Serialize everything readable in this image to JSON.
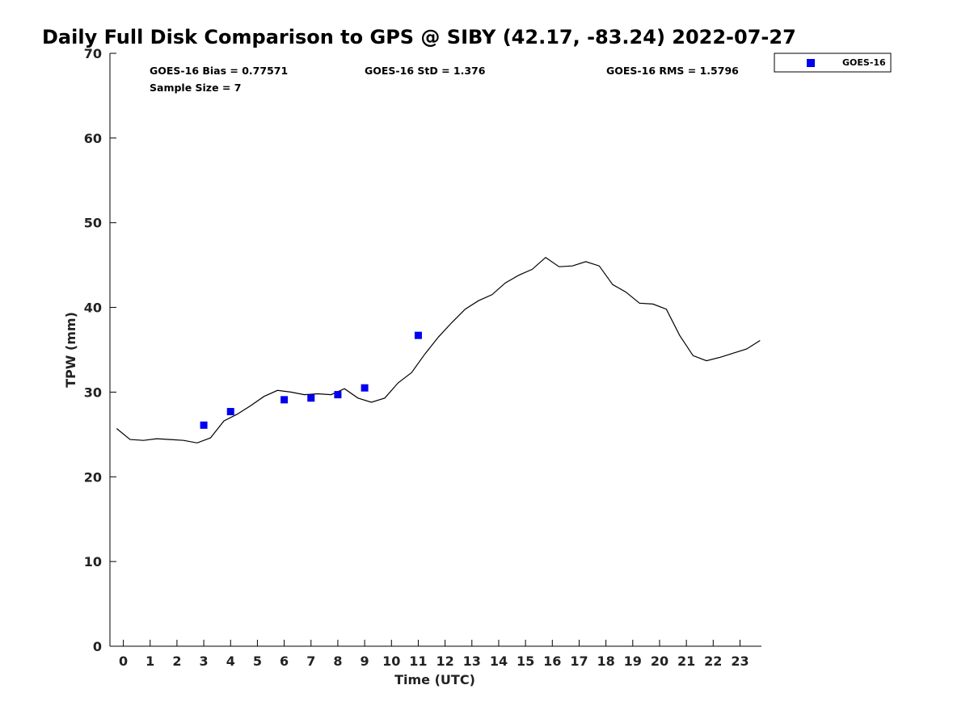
{
  "chart_data": {
    "type": "scatter",
    "title": "Daily Full Disk Comparison to GPS @ SIBY (42.17, -83.24) 2022-07-27",
    "xlabel": "Time (UTC)",
    "ylabel": "TPW (mm)",
    "xlim": [
      -0.5,
      23.8
    ],
    "ylim": [
      0,
      70
    ],
    "x_ticks": [
      "0",
      "1",
      "2",
      "3",
      "4",
      "5",
      "6",
      "7",
      "8",
      "9",
      "10",
      "11",
      "12",
      "13",
      "14",
      "15",
      "16",
      "17",
      "18",
      "19",
      "20",
      "21",
      "22",
      "23"
    ],
    "y_ticks": [
      "0",
      "10",
      "20",
      "30",
      "40",
      "50",
      "60",
      "70"
    ],
    "grid": false,
    "legend_position": "top-right",
    "stats": {
      "bias": "GOES-16 Bias = 0.77571",
      "std": "GOES-16 StD = 1.376",
      "rms": "GOES-16 RMS = 1.5796",
      "sample": "Sample Size = 7"
    },
    "series": [
      {
        "name": "GOES-16",
        "kind": "scatter",
        "color": "#0000ee",
        "x": [
          3.0,
          4.0,
          6.0,
          7.0,
          8.0,
          9.0,
          11.0
        ],
        "y": [
          26.1,
          27.7,
          29.1,
          29.3,
          29.7,
          30.5,
          36.7
        ]
      },
      {
        "kind": "line",
        "color": "#000000",
        "x": [
          -0.25,
          0.25,
          0.75,
          1.25,
          1.75,
          2.25,
          2.75,
          3.25,
          3.75,
          4.25,
          4.75,
          5.25,
          5.75,
          6.25,
          6.75,
          7.25,
          7.75,
          8.25,
          8.75,
          9.25,
          9.75,
          10.25,
          10.75,
          11.25,
          11.75,
          12.25,
          12.75,
          13.25,
          13.75,
          14.25,
          14.75,
          15.25,
          15.75,
          16.25,
          16.75,
          17.25,
          17.75,
          18.25,
          18.75,
          19.25,
          19.75,
          20.25,
          20.75,
          21.25,
          21.75,
          22.25,
          22.75,
          23.25,
          23.75
        ],
        "y": [
          25.7,
          24.4,
          24.3,
          24.5,
          24.4,
          24.3,
          24.0,
          24.6,
          26.6,
          27.4,
          28.4,
          29.5,
          30.2,
          30.0,
          29.7,
          29.8,
          29.7,
          30.4,
          29.3,
          28.8,
          29.3,
          31.1,
          32.3,
          34.5,
          36.5,
          38.2,
          39.8,
          40.8,
          41.5,
          42.9,
          43.8,
          44.5,
          45.9,
          44.8,
          44.9,
          45.4,
          44.9,
          42.7,
          41.8,
          40.5,
          40.4,
          39.8,
          36.7,
          34.3,
          33.7,
          34.1,
          34.6,
          35.1,
          36.1
        ]
      }
    ]
  }
}
